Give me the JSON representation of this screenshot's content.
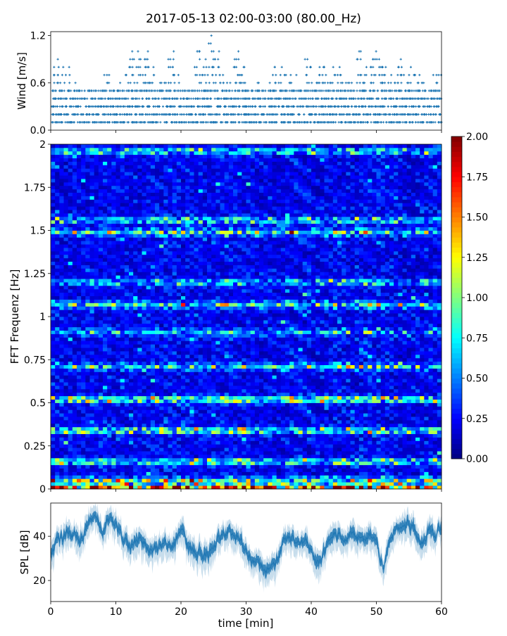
{
  "chart_data": [
    {
      "type": "scatter",
      "title": "2017-05-13 02:00-03:00 (80.00_Hz)",
      "ylabel": "Wind [m/s]",
      "xlim": [
        0,
        60
      ],
      "ylim": [
        0,
        1.25
      ],
      "yticks": [
        "0.0",
        "0.6",
        "1.2"
      ],
      "ytick_values": [
        0,
        0.6,
        1.2
      ],
      "marker": "+",
      "color": "#1f77b4",
      "level_step": 0.1,
      "max_per_minute": [
        0.8,
        0.9,
        0.9,
        0.6,
        0.6,
        0.6,
        0.5,
        0.6,
        0.8,
        0.6,
        0.6,
        0.7,
        1.0,
        1.0,
        1.0,
        0.9,
        0.7,
        0.7,
        1.0,
        0.7,
        0.6,
        0.6,
        1.1,
        0.9,
        1.2,
        1.0,
        0.7,
        0.7,
        1.0,
        0.9,
        0.6,
        0.6,
        0.7,
        0.6,
        0.8,
        0.8,
        0.7,
        0.7,
        0.6,
        0.9,
        0.7,
        1.0,
        0.7,
        0.8,
        0.8,
        0.7,
        0.6,
        1.1,
        0.8,
        1.0,
        1.0,
        0.8,
        0.7,
        0.9,
        0.8,
        0.8,
        0.7,
        0.6,
        0.7,
        0.8
      ]
    },
    {
      "type": "heatmap",
      "ylabel": "FFT Frequenz [Hz]",
      "xlim": [
        0,
        60
      ],
      "ylim": [
        0,
        2
      ],
      "yticks": [
        "0",
        "0.25",
        "0.5",
        "0.75",
        "1",
        "1.25",
        "1.5",
        "1.75",
        "2"
      ],
      "ytick_values": [
        0,
        0.25,
        0.5,
        0.75,
        1,
        1.25,
        1.5,
        1.75,
        2
      ],
      "colormap": "jet",
      "clim": [
        0,
        2
      ],
      "colorbar_ticks": [
        "0.00",
        "0.25",
        "0.50",
        "0.75",
        "1.00",
        "1.25",
        "1.50",
        "1.75",
        "2.00"
      ],
      "colorbar_tick_values": [
        0,
        0.25,
        0.5,
        0.75,
        1,
        1.25,
        1.5,
        1.75,
        2
      ],
      "freq_bands": [
        {
          "f": 0.01,
          "level": 1.7
        },
        {
          "f": 0.05,
          "level": 0.9
        },
        {
          "f": 0.16,
          "level": 0.8
        },
        {
          "f": 0.34,
          "level": 0.85
        },
        {
          "f": 0.52,
          "level": 1.0
        },
        {
          "f": 0.71,
          "level": 0.65
        },
        {
          "f": 0.91,
          "level": 0.5
        },
        {
          "f": 1.07,
          "level": 0.75
        },
        {
          "f": 1.2,
          "level": 0.55
        },
        {
          "f": 1.49,
          "level": 0.75
        },
        {
          "f": 1.56,
          "level": 0.6
        },
        {
          "f": 1.96,
          "level": 0.6
        }
      ],
      "background_level": 0.28
    },
    {
      "type": "area",
      "xlabel": "time [min]",
      "ylabel": "SPL [dB]",
      "xlim": [
        0,
        60
      ],
      "ylim": [
        10.5,
        55
      ],
      "xticks": [
        "0",
        "10",
        "20",
        "30",
        "40",
        "50",
        "60"
      ],
      "xtick_values": [
        0,
        10,
        20,
        30,
        40,
        50,
        60
      ],
      "yticks": [
        "20",
        "40"
      ],
      "ytick_values": [
        20,
        40
      ],
      "color": "#1f77b4",
      "minutes": [
        0,
        1,
        2,
        3,
        4,
        5,
        6,
        7,
        8,
        9,
        10,
        11,
        12,
        13,
        14,
        15,
        16,
        17,
        18,
        19,
        20,
        21,
        22,
        23,
        24,
        25,
        26,
        27,
        28,
        29,
        30,
        31,
        32,
        33,
        34,
        35,
        36,
        37,
        38,
        39,
        40,
        41,
        42,
        43,
        44,
        45,
        46,
        47,
        48,
        49,
        50,
        51,
        52,
        53,
        54,
        55,
        56,
        57,
        58,
        59,
        60
      ],
      "mean_db": [
        32,
        38,
        40,
        41,
        40,
        39,
        49,
        47,
        43,
        48,
        45,
        40,
        36,
        38,
        38,
        34,
        35,
        37,
        37,
        36,
        45,
        36,
        34,
        32,
        32,
        34,
        40,
        42,
        42,
        39,
        33,
        30,
        27,
        24,
        27,
        30,
        40,
        39,
        37,
        38,
        33,
        27,
        33,
        42,
        40,
        38,
        41,
        40,
        38,
        41,
        37,
        25,
        38,
        44,
        45,
        47,
        42,
        36,
        42,
        40,
        44
      ],
      "spread_db": 4
    }
  ]
}
